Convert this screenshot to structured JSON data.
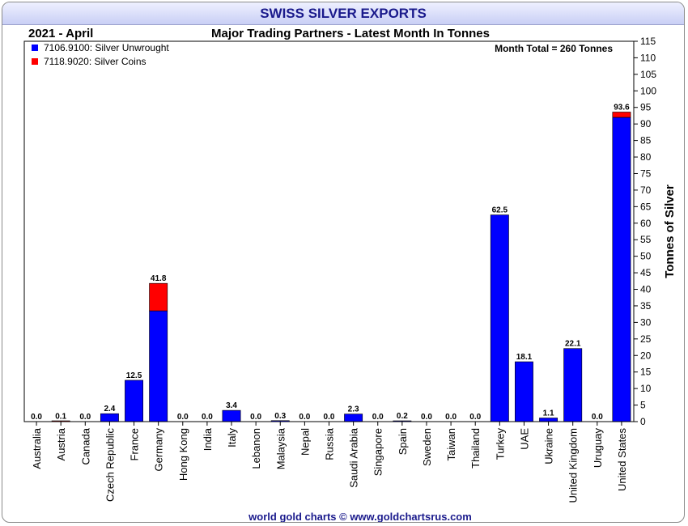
{
  "header": {
    "title": "SWISS SILVER EXPORTS",
    "period": "2021 - April",
    "subtitle": "Major Trading Partners - Latest Month In Tonnes",
    "month_total": "Month Total = 260 Tonnes",
    "credit": "world gold charts © www.goldchartsrus.com"
  },
  "chart_data": {
    "type": "bar",
    "stacked": true,
    "ylabel": "Tonnes of Silver",
    "ylim": [
      0,
      115
    ],
    "y_tick_step": 5,
    "legend_position": "top-left",
    "categories": [
      "Australia",
      "Austria",
      "Canada",
      "Czech Republic",
      "France",
      "Germany",
      "Hong Kong",
      "India",
      "Italy",
      "Lebanon",
      "Malaysia",
      "Nepal",
      "Russia",
      "Saudi Arabia",
      "Singapore",
      "Spain",
      "Sweden",
      "Taiwan",
      "Thailand",
      "Turkey",
      "UAE",
      "Ukraine",
      "United Kingdom",
      "Uruguay",
      "United States"
    ],
    "series": [
      {
        "name": "7106.9100: Silver Unwrought",
        "color": "#0000ff",
        "values": [
          0.0,
          0.0,
          0.0,
          2.4,
          12.5,
          33.5,
          0.0,
          0.0,
          3.4,
          0.0,
          0.3,
          0.0,
          0.0,
          2.3,
          0.0,
          0.2,
          0.0,
          0.0,
          0.0,
          62.5,
          18.1,
          1.1,
          22.1,
          0.0,
          92.0
        ]
      },
      {
        "name": "7118.9020: Silver Coins",
        "color": "#ff0000",
        "values": [
          0.0,
          0.1,
          0.0,
          0.0,
          0.0,
          8.3,
          0.0,
          0.0,
          0.0,
          0.0,
          0.0,
          0.0,
          0.0,
          0.0,
          0.0,
          0.0,
          0.0,
          0.0,
          0.0,
          0.0,
          0.0,
          0.0,
          0.0,
          0.0,
          1.6
        ]
      }
    ],
    "totals": [
      "0.0",
      "0.1",
      "0.0",
      "2.4",
      "12.5",
      "41.8",
      "0.0",
      "0.0",
      "3.4",
      "0.0",
      "0.3",
      "0.0",
      "0.0",
      "2.3",
      "0.0",
      "0.2",
      "0.0",
      "0.0",
      "0.0",
      "62.5",
      "18.1",
      "1.1",
      "22.1",
      "0.0",
      "93.6"
    ]
  }
}
